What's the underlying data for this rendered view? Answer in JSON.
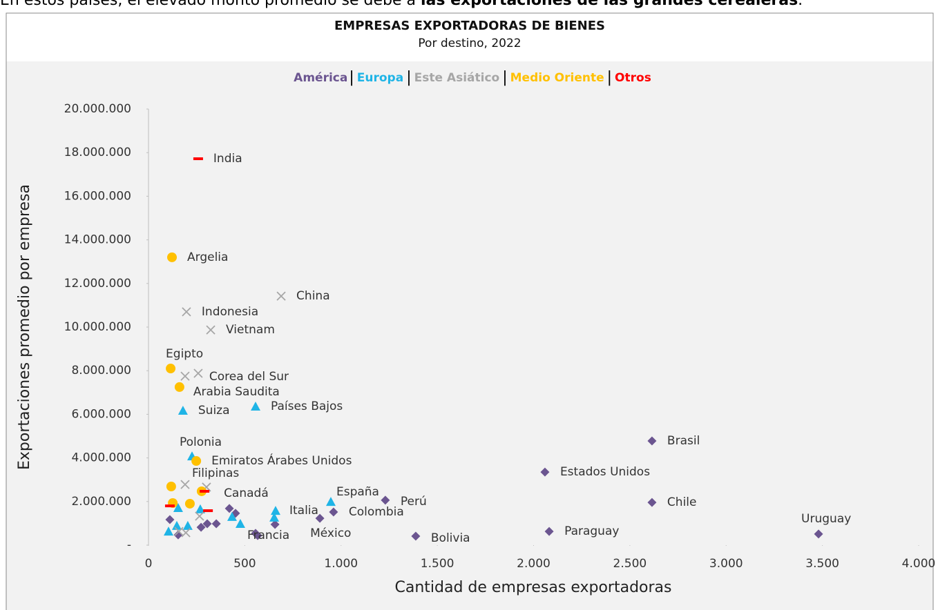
{
  "intro": {
    "text": "En estos países, el elevado monto promedio se debe a ",
    "bold": "las exportaciones de las grandes cerealeras",
    "end": "."
  },
  "chart_data": {
    "type": "scatter",
    "title": "EMPRESAS EXPORTADORAS DE BIENES",
    "subtitle": "Por destino, 2022",
    "x_label": "Cantidad de empresas exportadoras",
    "y_label": "Exportaciones promedio por empresa",
    "xlim": [
      0,
      4000
    ],
    "ylim": [
      0,
      20000000
    ],
    "xticks": [
      0,
      500,
      {
        "value": 1000,
        "label": "1.000"
      },
      {
        "value": 1500,
        "label": "1.500"
      },
      {
        "value": 2000,
        "label": "2.000"
      },
      {
        "value": 2500,
        "label": "2.500"
      },
      {
        "value": 3000,
        "label": "3.000"
      },
      {
        "value": 3500,
        "label": "3.500"
      },
      {
        "value": 4000,
        "label": "4.000"
      }
    ],
    "yticks": [
      {
        "value": 0,
        "label": "-"
      },
      {
        "value": 2000000,
        "label": "2.000.000"
      },
      {
        "value": 4000000,
        "label": "4.000.000"
      },
      {
        "value": 6000000,
        "label": "6.000.000"
      },
      {
        "value": 8000000,
        "label": "8.000.000"
      },
      {
        "value": 10000000,
        "label": "10.000.000"
      },
      {
        "value": 12000000,
        "label": "12.000.000"
      },
      {
        "value": 14000000,
        "label": "14.000.000"
      },
      {
        "value": 16000000,
        "label": "16.000.000"
      },
      {
        "value": 18000000,
        "label": "18.000.000"
      },
      {
        "value": 20000000,
        "label": "20.000.000"
      }
    ],
    "grid": false,
    "series": [
      {
        "name": "América",
        "color": "#6b5590",
        "marker": "diamond",
        "labels": [
          "Brasil",
          "Estados Unidos",
          "Chile",
          "Uruguay",
          "Paraguay",
          "Bolivia",
          "Perú",
          "Colombia",
          "México",
          "Canadá",
          null,
          null,
          null,
          null,
          null,
          null,
          null,
          null,
          null
        ],
        "x": [
          2615,
          2059,
          2615,
          3480,
          2081,
          1388,
          1230,
          961,
          890,
          420,
          111,
          352,
          452,
          273,
          305,
          567,
          154,
          657,
          556
        ],
        "values": [
          4780000,
          3350000,
          1960000,
          510000,
          630000,
          410000,
          2060000,
          1520000,
          1230000,
          1680000,
          1170000,
          980000,
          1460000,
          820000,
          980000,
          440000,
          470000,
          950000,
          540000
        ]
      },
      {
        "name": "Europa",
        "color": "#1fb4e6",
        "marker": "triangle",
        "labels": [
          "Países Bajos",
          "Suiza",
          "Polonia",
          "España",
          "Italia",
          "Francia",
          null,
          null,
          null,
          null,
          null,
          null,
          null
        ],
        "x": [
          556,
          179,
          226,
          947,
          660,
          477,
          434,
          653,
          154,
          204,
          104,
          147,
          269
        ],
        "values": [
          6360000,
          6170000,
          4080000,
          1990000,
          1580000,
          980000,
          1300000,
          1270000,
          1710000,
          890000,
          630000,
          890000,
          1650000
        ]
      },
      {
        "name": "Este Asiático",
        "color": "#a6a6a6",
        "marker": "x",
        "labels": [
          "China",
          "Indonesia",
          "Vietnam",
          "Corea del Sur",
          "Filipinas",
          null,
          null,
          null,
          null,
          null
        ],
        "x": [
          689,
          197,
          323,
          258,
          190,
          190,
          301,
          265,
          194,
          158
        ],
        "values": [
          11420000,
          10700000,
          9870000,
          7880000,
          2780000,
          7750000,
          2660000,
          1330000,
          570000,
          630000
        ]
      },
      {
        "name": "Medio Oriente",
        "color": "#ffc000",
        "marker": "circle",
        "labels": [
          "Argelia",
          "Egipto",
          "Arabia Saudita",
          "Emiratos Árabes Unidos",
          null,
          null,
          null,
          null
        ],
        "x": [
          122,
          115,
          161,
          248,
          118,
          126,
          215,
          276
        ],
        "values": [
          13200000,
          8100000,
          7250000,
          3860000,
          2690000,
          1930000,
          1900000,
          2470000
        ]
      },
      {
        "name": "Otros",
        "color": "#ff0000",
        "marker": "dash",
        "labels": [
          "India",
          null,
          null,
          null
        ],
        "x": [
          258,
          111,
          291,
          309
        ],
        "values": [
          17720000,
          1800000,
          2470000,
          1580000
        ]
      }
    ]
  }
}
